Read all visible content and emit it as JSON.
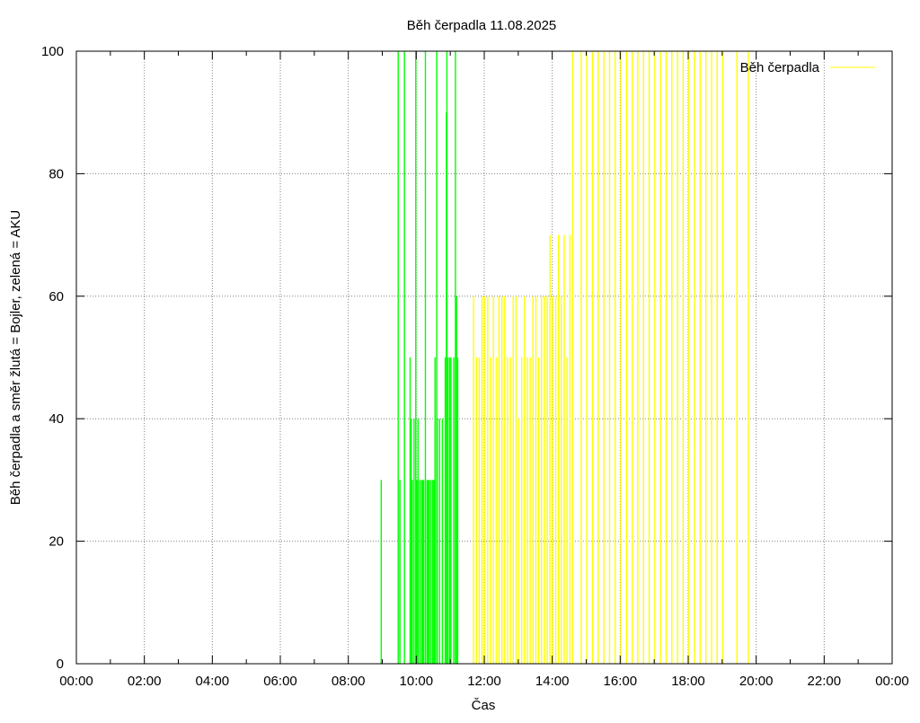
{
  "colors": {
    "bojler": "#ffff00",
    "aku": "#00ff00",
    "axis": "#000000",
    "grid": "#808080"
  },
  "chart_data": {
    "type": "bar",
    "title": "Běh čerpadla 11.08.2025",
    "xlabel": "Čas",
    "ylabel": "Běh čerpadla a směr žlutá = Bojler, zelená = AKU",
    "xlim_hours": [
      0,
      24
    ],
    "ylim": [
      0,
      100
    ],
    "grid": true,
    "legend_position": "top-right",
    "x_tick_labels": [
      "00:00",
      "02:00",
      "04:00",
      "06:00",
      "08:00",
      "10:00",
      "12:00",
      "14:00",
      "16:00",
      "18:00",
      "20:00",
      "22:00",
      "00:00"
    ],
    "y_tick_labels": [
      "0",
      "20",
      "40",
      "60",
      "80",
      "100"
    ],
    "legend": [
      {
        "name": "Běh čerpadla",
        "color": "#ffff00"
      }
    ],
    "series": [
      {
        "name": "AKU",
        "color": "#00ff00",
        "points": [
          [
            "08:57",
            30
          ],
          [
            "09:27",
            100
          ],
          [
            "09:30",
            30
          ],
          [
            "09:38",
            100
          ],
          [
            "09:48",
            50
          ],
          [
            "09:50",
            40
          ],
          [
            "09:52",
            30
          ],
          [
            "09:55",
            40
          ],
          [
            "09:58",
            100
          ],
          [
            "10:00",
            30
          ],
          [
            "10:02",
            40
          ],
          [
            "10:05",
            30
          ],
          [
            "10:08",
            30
          ],
          [
            "10:10",
            30
          ],
          [
            "10:12",
            30
          ],
          [
            "10:15",
            100
          ],
          [
            "10:18",
            30
          ],
          [
            "10:20",
            30
          ],
          [
            "10:22",
            30
          ],
          [
            "10:25",
            30
          ],
          [
            "10:28",
            30
          ],
          [
            "10:30",
            30
          ],
          [
            "10:32",
            50
          ],
          [
            "10:35",
            100
          ],
          [
            "10:36",
            40
          ],
          [
            "10:40",
            40
          ],
          [
            "10:45",
            40
          ],
          [
            "10:50",
            50
          ],
          [
            "10:52",
            90
          ],
          [
            "10:53",
            100
          ],
          [
            "10:55",
            50
          ],
          [
            "10:58",
            50
          ],
          [
            "11:00",
            50
          ],
          [
            "11:05",
            50
          ],
          [
            "11:08",
            100
          ],
          [
            "11:10",
            60
          ],
          [
            "11:12",
            50
          ]
        ]
      },
      {
        "name": "Bojler",
        "color": "#ffff00",
        "points": [
          [
            "11:40",
            60
          ],
          [
            "11:45",
            50
          ],
          [
            "11:50",
            50
          ],
          [
            "11:55",
            60
          ],
          [
            "12:00",
            60
          ],
          [
            "12:05",
            60
          ],
          [
            "12:10",
            50
          ],
          [
            "12:15",
            60
          ],
          [
            "12:20",
            50
          ],
          [
            "12:25",
            60
          ],
          [
            "12:30",
            60
          ],
          [
            "12:35",
            60
          ],
          [
            "12:40",
            50
          ],
          [
            "12:45",
            50
          ],
          [
            "12:50",
            60
          ],
          [
            "12:55",
            60
          ],
          [
            "13:00",
            40
          ],
          [
            "13:05",
            50
          ],
          [
            "13:10",
            60
          ],
          [
            "13:15",
            50
          ],
          [
            "13:20",
            50
          ],
          [
            "13:25",
            60
          ],
          [
            "13:30",
            60
          ],
          [
            "13:35",
            50
          ],
          [
            "13:40",
            60
          ],
          [
            "13:45",
            60
          ],
          [
            "13:50",
            60
          ],
          [
            "13:55",
            70
          ],
          [
            "14:00",
            60
          ],
          [
            "14:05",
            60
          ],
          [
            "14:10",
            70
          ],
          [
            "14:15",
            60
          ],
          [
            "14:20",
            70
          ],
          [
            "14:25",
            50
          ],
          [
            "14:30",
            70
          ],
          [
            "14:35",
            100
          ],
          [
            "14:50",
            100
          ],
          [
            "15:00",
            100
          ],
          [
            "15:10",
            100
          ],
          [
            "15:20",
            100
          ],
          [
            "15:30",
            100
          ],
          [
            "15:40",
            100
          ],
          [
            "15:50",
            100
          ],
          [
            "16:00",
            100
          ],
          [
            "16:10",
            100
          ],
          [
            "16:20",
            100
          ],
          [
            "16:30",
            100
          ],
          [
            "16:40",
            100
          ],
          [
            "16:50",
            100
          ],
          [
            "17:00",
            100
          ],
          [
            "17:10",
            100
          ],
          [
            "17:20",
            100
          ],
          [
            "17:30",
            100
          ],
          [
            "17:40",
            100
          ],
          [
            "17:50",
            100
          ],
          [
            "18:00",
            100
          ],
          [
            "18:10",
            100
          ],
          [
            "18:20",
            100
          ],
          [
            "18:30",
            100
          ],
          [
            "18:40",
            100
          ],
          [
            "18:50",
            100
          ],
          [
            "19:00",
            100
          ],
          [
            "19:25",
            100
          ],
          [
            "19:45",
            100
          ]
        ]
      }
    ]
  }
}
